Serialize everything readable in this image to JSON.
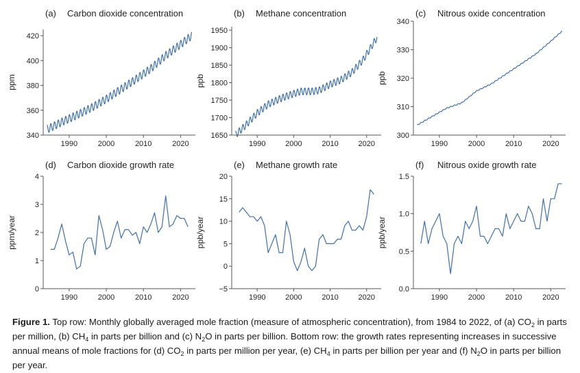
{
  "chart_data": [
    {
      "id": "a",
      "type": "line",
      "panel_letter": "(a)",
      "title": "Carbon dioxide concentration",
      "ylabel": "ppm",
      "ylim": [
        340,
        425
      ],
      "yticks": [
        340,
        360,
        380,
        400,
        420
      ],
      "xlim": [
        1983,
        2024
      ],
      "xticks": [
        1990,
        2000,
        2010,
        2020
      ],
      "seasonal_amplitude": 3.2,
      "series": [
        {
          "x": [
            1984,
            1988,
            1992,
            1996,
            2000,
            2004,
            2008,
            2012,
            2016,
            2020,
            2023
          ],
          "values": [
            344.5,
            350.5,
            356,
            362,
            369,
            377,
            385,
            393.5,
            404,
            413,
            420
          ]
        }
      ]
    },
    {
      "id": "b",
      "type": "line",
      "panel_letter": "(b)",
      "title": "Methane concentration",
      "ylabel": "ppb",
      "ylim": [
        1650,
        1960
      ],
      "yticks": [
        1650,
        1700,
        1750,
        1800,
        1850,
        1900,
        1950
      ],
      "xlim": [
        1983,
        2024
      ],
      "xticks": [
        1990,
        2000,
        2010,
        2020
      ],
      "seasonal_amplitude": 10,
      "series": [
        {
          "x": [
            1984,
            1987,
            1990,
            1993,
            1996,
            1999,
            2002,
            2005,
            2007,
            2010,
            2013,
            2016,
            2019,
            2021,
            2022.9
          ],
          "values": [
            1650,
            1680,
            1713,
            1738,
            1753,
            1765,
            1775,
            1775,
            1778,
            1795,
            1808,
            1830,
            1865,
            1898,
            1930
          ]
        }
      ]
    },
    {
      "id": "c",
      "type": "line",
      "panel_letter": "(c)",
      "title": "Nitrous oxide concentration",
      "ylabel": "ppb",
      "ylim": [
        300,
        340
      ],
      "yticks": [
        300,
        310,
        320,
        330,
        340
      ],
      "xlim": [
        1983,
        2024
      ],
      "xticks": [
        1990,
        2000,
        2010,
        2020
      ],
      "seasonal_amplitude": 0.15,
      "series": [
        {
          "x": [
            1984,
            1988,
            1992,
            1996,
            2000,
            2004,
            2008,
            2012,
            2016,
            2020,
            2023
          ],
          "values": [
            303.5,
            306.5,
            309.5,
            311.3,
            315.5,
            318,
            321.5,
            325,
            328.5,
            333,
            336.5
          ]
        }
      ]
    },
    {
      "id": "d",
      "type": "line",
      "panel_letter": "(d)",
      "title": "Carbon dioxide growth rate",
      "ylabel": "ppm/year",
      "ylim": [
        0,
        4
      ],
      "yticks": [
        0,
        1,
        2,
        3,
        4
      ],
      "xlim": [
        1983,
        2024
      ],
      "xticks": [
        1990,
        2000,
        2010,
        2020
      ],
      "series": [
        {
          "x": [
            1985,
            1986,
            1987,
            1988,
            1989,
            1990,
            1991,
            1992,
            1993,
            1994,
            1995,
            1996,
            1997,
            1998,
            1999,
            2000,
            2001,
            2002,
            2003,
            2004,
            2005,
            2006,
            2007,
            2008,
            2009,
            2010,
            2011,
            2012,
            2013,
            2014,
            2015,
            2016,
            2017,
            2018,
            2019,
            2020,
            2021,
            2022
          ],
          "values": [
            1.4,
            1.4,
            1.8,
            2.3,
            1.7,
            1.2,
            1.3,
            0.7,
            0.8,
            1.6,
            1.8,
            1.8,
            1.2,
            2.6,
            2.1,
            1.4,
            1.5,
            2.0,
            2.4,
            1.8,
            2.1,
            2.1,
            1.9,
            2.0,
            1.6,
            2.2,
            2.0,
            2.3,
            2.7,
            2.0,
            2.2,
            3.3,
            2.2,
            2.3,
            2.6,
            2.5,
            2.5,
            2.2
          ]
        }
      ]
    },
    {
      "id": "e",
      "type": "line",
      "panel_letter": "(e)",
      "title": "Methane growth rate",
      "ylabel": "ppb/year",
      "ylim": [
        -5,
        20
      ],
      "yticks": [
        -5,
        0,
        5,
        10,
        15,
        20
      ],
      "xlim": [
        1983,
        2024
      ],
      "xticks": [
        1990,
        2000,
        2010,
        2020
      ],
      "series": [
        {
          "x": [
            1985,
            1986,
            1987,
            1988,
            1989,
            1990,
            1991,
            1992,
            1993,
            1994,
            1995,
            1996,
            1997,
            1998,
            1999,
            2000,
            2001,
            2002,
            2003,
            2004,
            2005,
            2006,
            2007,
            2008,
            2009,
            2010,
            2011,
            2012,
            2013,
            2014,
            2015,
            2016,
            2017,
            2018,
            2019,
            2020,
            2021,
            2022
          ],
          "values": [
            12,
            13,
            12,
            11,
            11,
            10,
            11,
            9,
            3,
            5,
            7,
            3,
            3,
            10,
            7,
            1,
            -1,
            1,
            4,
            0,
            -1,
            0,
            6,
            7,
            5,
            5,
            5,
            6,
            6,
            9,
            10,
            8,
            8,
            9,
            8,
            11,
            17,
            16
          ]
        }
      ]
    },
    {
      "id": "f",
      "type": "line",
      "panel_letter": "(f)",
      "title": "Nitrous oxide growth rate",
      "ylabel": "ppb/year",
      "ylim": [
        0,
        1.5
      ],
      "yticks": [
        0,
        0.5,
        1,
        1.5
      ],
      "ytick_labels": [
        "0.0",
        "0.5",
        "1.0",
        "1.5"
      ],
      "xlim": [
        1983,
        2024
      ],
      "xticks": [
        1990,
        2000,
        2010,
        2020
      ],
      "series": [
        {
          "x": [
            1985,
            1986,
            1987,
            1988,
            1989,
            1990,
            1991,
            1992,
            1993,
            1994,
            1995,
            1996,
            1997,
            1998,
            1999,
            2000,
            2001,
            2002,
            2003,
            2004,
            2005,
            2006,
            2007,
            2008,
            2009,
            2010,
            2011,
            2012,
            2013,
            2014,
            2015,
            2016,
            2017,
            2018,
            2019,
            2020,
            2021,
            2022,
            2023
          ],
          "values": [
            0.6,
            0.9,
            0.6,
            0.8,
            0.9,
            1.0,
            0.7,
            0.6,
            0.2,
            0.6,
            0.7,
            0.6,
            0.9,
            0.8,
            0.9,
            1.1,
            0.7,
            0.7,
            0.6,
            0.7,
            0.8,
            0.8,
            0.7,
            1.0,
            0.8,
            0.9,
            1.0,
            0.9,
            0.9,
            1.1,
            1.0,
            0.8,
            0.8,
            1.2,
            0.9,
            1.2,
            1.2,
            1.4,
            1.4
          ]
        }
      ]
    }
  ],
  "caption": {
    "figure_label": "Figure 1.",
    "segments": [
      " Top row: Monthly globally averaged mole fraction (measure of atmospheric concentration), from 1984 to 2022, of (a) CO",
      "2",
      " in parts per million, (b) CH",
      "4",
      " in parts per billion and (c) N",
      "2",
      "O in parts per billion. Bottom row: the growth rates representing increases in successive annual means of mole fractions for (d) CO",
      "2",
      " in parts per million per year, (e) CH",
      "4",
      " in parts per billion per year and (f) N",
      "2",
      "O in parts per billion per year."
    ]
  }
}
